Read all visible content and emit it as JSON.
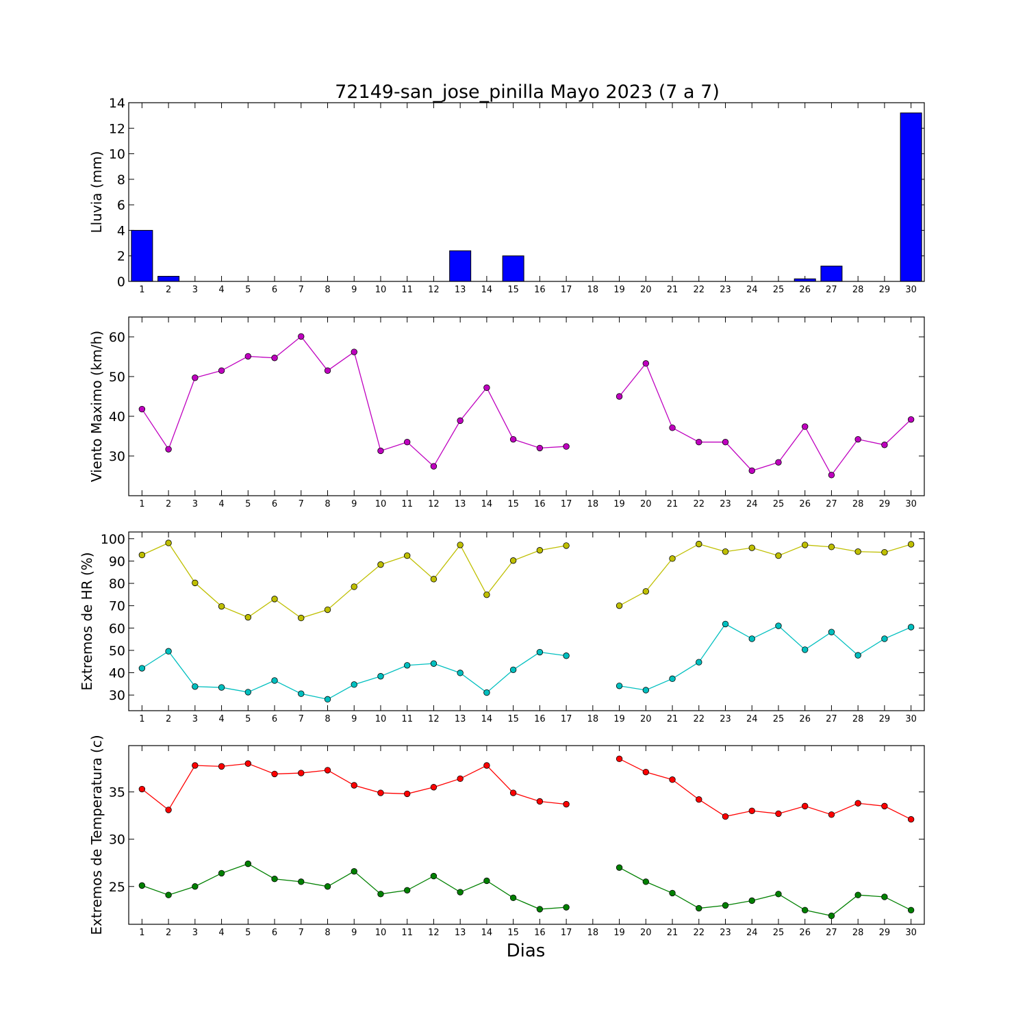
{
  "title": "72149-san_jose_pinilla Mayo 2023  (7 a 7)",
  "xlabel": "Dias",
  "chart_data": [
    {
      "type": "bar",
      "ylabel": "Lluvia (mm)",
      "ylim": [
        0,
        14
      ],
      "yticks": [
        0,
        2,
        4,
        6,
        8,
        10,
        12,
        14
      ],
      "x": [
        1,
        2,
        3,
        4,
        5,
        6,
        7,
        8,
        9,
        10,
        11,
        12,
        13,
        14,
        15,
        16,
        17,
        18,
        19,
        20,
        21,
        22,
        23,
        24,
        25,
        26,
        27,
        28,
        29,
        30
      ],
      "color": "#0000ff",
      "series": [
        {
          "values": [
            4.0,
            0.4,
            0,
            0,
            0,
            0,
            0,
            0,
            0,
            0,
            0,
            0,
            2.4,
            0,
            2.0,
            0,
            0,
            0,
            0,
            0,
            0,
            0,
            0,
            0,
            0,
            0.2,
            1.2,
            0,
            0,
            13.2
          ]
        }
      ]
    },
    {
      "type": "line",
      "ylabel": "Viento Maximo (km/h)",
      "ylim": [
        20,
        65
      ],
      "yticks": [
        30,
        40,
        50,
        60
      ],
      "x": [
        1,
        2,
        3,
        4,
        5,
        6,
        7,
        8,
        9,
        10,
        11,
        12,
        13,
        14,
        15,
        16,
        17,
        18,
        19,
        20,
        21,
        22,
        23,
        24,
        25,
        26,
        27,
        28,
        29,
        30
      ],
      "series": [
        {
          "color": "#bf00bf",
          "values": [
            41.8,
            31.7,
            49.7,
            51.5,
            55.1,
            54.7,
            60.1,
            51.5,
            56.2,
            31.3,
            33.5,
            27.4,
            38.9,
            47.2,
            34.2,
            32.0,
            32.4,
            null,
            45.0,
            53.3,
            37.1,
            33.5,
            33.5,
            26.3,
            28.4,
            37.4,
            25.2,
            34.2,
            32.8,
            39.2
          ]
        }
      ]
    },
    {
      "type": "line",
      "ylabel": "Extremos de HR (%)",
      "ylim": [
        23,
        103
      ],
      "yticks": [
        30,
        40,
        50,
        60,
        70,
        80,
        90,
        100
      ],
      "x": [
        1,
        2,
        3,
        4,
        5,
        6,
        7,
        8,
        9,
        10,
        11,
        12,
        13,
        14,
        15,
        16,
        17,
        18,
        19,
        20,
        21,
        22,
        23,
        24,
        25,
        26,
        27,
        28,
        29,
        30
      ],
      "series": [
        {
          "color": "#bfbf00",
          "values": [
            92.7,
            98.1,
            80.2,
            69.7,
            64.8,
            73.0,
            64.5,
            68.2,
            78.5,
            88.4,
            92.4,
            81.9,
            97.2,
            74.9,
            90.2,
            94.8,
            96.9,
            null,
            70.0,
            76.4,
            91.1,
            97.6,
            94.2,
            95.9,
            92.4,
            97.2,
            96.3,
            94.2,
            93.9,
            97.5
          ]
        },
        {
          "color": "#00bfbf",
          "values": [
            42.0,
            49.6,
            33.8,
            33.4,
            31.3,
            36.5,
            30.6,
            28.1,
            34.7,
            38.4,
            43.3,
            44.1,
            39.9,
            31.1,
            41.3,
            49.2,
            47.6,
            null,
            34.1,
            32.2,
            37.3,
            44.7,
            61.8,
            55.2,
            61.0,
            50.3,
            58.2,
            47.8,
            55.2,
            60.4
          ]
        }
      ]
    },
    {
      "type": "line",
      "ylabel": "Extremos de Temperatura (c)",
      "ylim": [
        21.0,
        39.9
      ],
      "yticks": [
        25,
        30,
        35
      ],
      "x": [
        1,
        2,
        3,
        4,
        5,
        6,
        7,
        8,
        9,
        10,
        11,
        12,
        13,
        14,
        15,
        16,
        17,
        18,
        19,
        20,
        21,
        22,
        23,
        24,
        25,
        26,
        27,
        28,
        29,
        30
      ],
      "series": [
        {
          "color": "#ff0000",
          "values": [
            35.3,
            33.1,
            37.8,
            37.7,
            38.0,
            36.9,
            37.0,
            37.3,
            35.7,
            34.9,
            34.8,
            35.5,
            36.4,
            37.8,
            34.9,
            34.0,
            33.7,
            null,
            38.5,
            37.1,
            36.3,
            34.2,
            32.4,
            33.0,
            32.7,
            33.5,
            32.6,
            33.8,
            33.5,
            32.1
          ]
        },
        {
          "color": "#008000",
          "values": [
            25.1,
            24.1,
            25.0,
            26.4,
            27.4,
            25.8,
            25.5,
            25.0,
            26.6,
            24.2,
            24.6,
            26.1,
            24.4,
            25.6,
            23.8,
            22.6,
            22.8,
            null,
            27.0,
            25.5,
            24.3,
            22.7,
            23.0,
            23.5,
            24.2,
            22.5,
            21.9,
            24.1,
            23.9,
            22.5
          ]
        }
      ]
    }
  ]
}
